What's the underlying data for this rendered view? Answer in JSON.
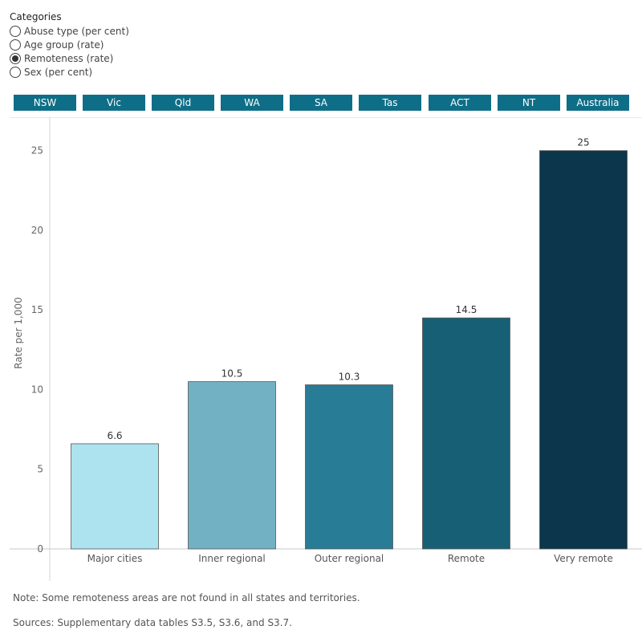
{
  "categories": {
    "title": "Categories",
    "options": [
      {
        "label": "Abuse type (per cent)",
        "selected": false
      },
      {
        "label": "Age group (rate)",
        "selected": false
      },
      {
        "label": "Remoteness (rate)",
        "selected": true
      },
      {
        "label": "Sex (per cent)",
        "selected": false
      }
    ]
  },
  "states": [
    "NSW",
    "Vic",
    "Qld",
    "WA",
    "SA",
    "Tas",
    "ACT",
    "NT",
    "Australia"
  ],
  "colors": {
    "state_button": "#0f6e87",
    "bars": [
      "#ade3ef",
      "#72b1c3",
      "#287c96",
      "#175f74",
      "#0b364c"
    ]
  },
  "chart_data": {
    "type": "bar",
    "categories": [
      "Major cities",
      "Inner regional",
      "Outer regional",
      "Remote",
      "Very remote"
    ],
    "values": [
      6.6,
      10.5,
      10.3,
      14.5,
      25
    ],
    "data_labels": [
      "6.6",
      "10.5",
      "10.3",
      "14.5",
      "25"
    ],
    "ylabel": "Rate per 1,000",
    "xlabel": "",
    "ylim": [
      0,
      27.1
    ],
    "yticks": [
      0,
      5,
      10,
      15,
      20,
      25
    ],
    "grid": false,
    "legend": "none"
  },
  "note": "Note: Some remoteness areas are not found in all states and territories.",
  "sources": "Sources: Supplementary data tables S3.5, S3.6, and S3.7."
}
